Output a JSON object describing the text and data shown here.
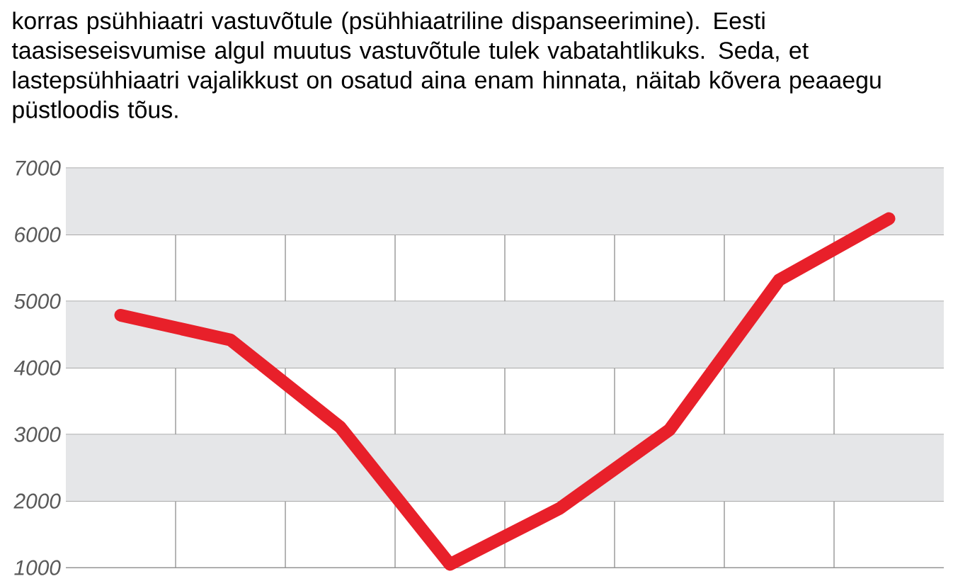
{
  "chart_data": {
    "type": "line",
    "title": "korras psühhiaatri vastuvõtule (psühhiaatriline dispanseerimine). Eesti taasiseseisvumise algul muutus vastuvõtule tulek vabatahtlikuks. Seda, et lastepsühhiaatri vajalikkust on osatud aina enam hinnata, näitab kõvera peaaegu püstloodis tõus.",
    "categories": [
      null,
      null,
      null,
      null,
      null,
      null,
      null,
      null
    ],
    "series": [
      {
        "color": "#e8202a",
        "values": [
          4790,
          4420,
          3110,
          1050,
          1890,
          3070,
          5320,
          6240
        ]
      }
    ],
    "ylim": [
      1000,
      7000
    ],
    "yticks": [
      1000,
      2000,
      3000,
      4000,
      5000,
      6000,
      7000
    ],
    "grid": true,
    "marker": "none",
    "line_style": "solid"
  }
}
